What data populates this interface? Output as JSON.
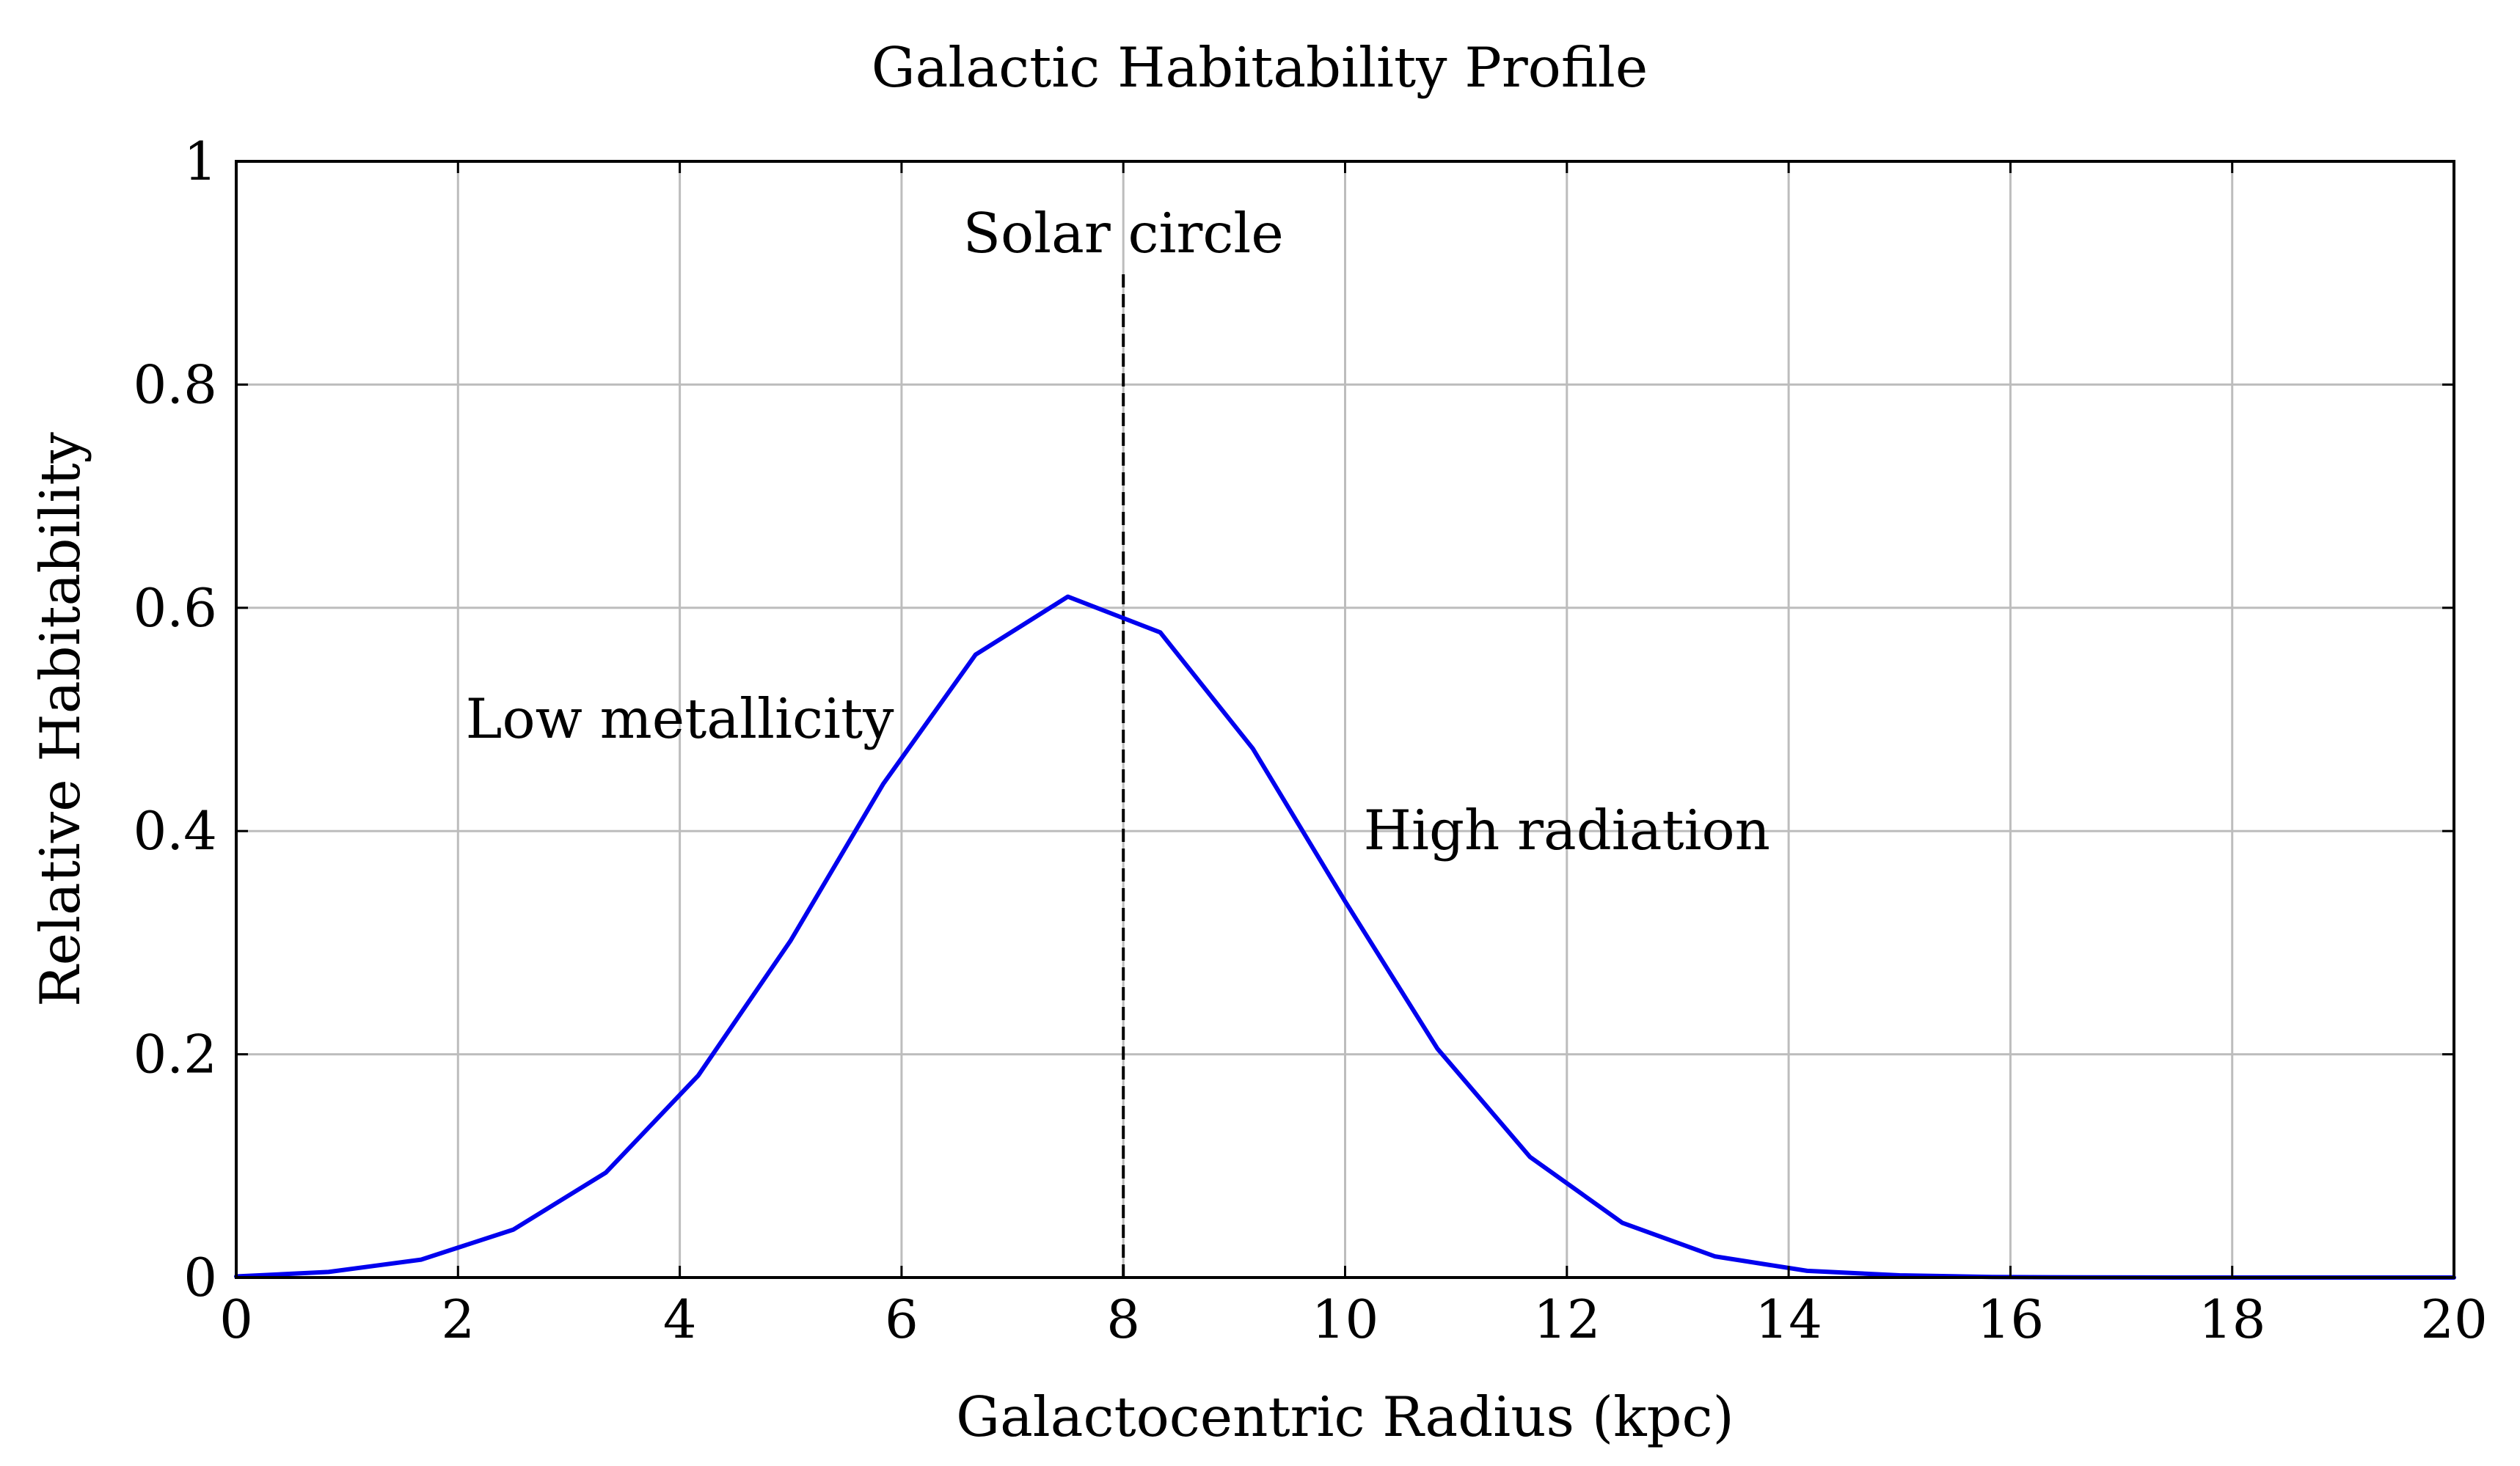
{
  "chart_data": {
    "type": "line",
    "title": "Galactic Habitability Profile",
    "xlabel": "Galactocentric Radius (kpc)",
    "ylabel": "Relative Habitability",
    "xlim": [
      0,
      20
    ],
    "ylim": [
      0,
      1
    ],
    "xticks": [
      0,
      2,
      4,
      6,
      8,
      10,
      12,
      14,
      16,
      18,
      20
    ],
    "yticks": [
      0,
      0.2,
      0.4,
      0.6,
      0.8,
      1
    ],
    "ytick_labels": [
      "0",
      "0.2",
      "0.4",
      "0.6",
      "0.8",
      "1"
    ],
    "grid": true,
    "series": [
      {
        "name": "Relative Habitability",
        "color": "#0000ee",
        "x": [
          0,
          0.833,
          1.667,
          2.5,
          3.333,
          4.167,
          5.0,
          5.833,
          6.667,
          7.5,
          8.333,
          9.167,
          10.0,
          10.833,
          11.667,
          12.5,
          13.333,
          14.167,
          15.0,
          15.833,
          16.667,
          17.5,
          18.333,
          19.167,
          20.0
        ],
        "y": [
          0.001,
          0.005,
          0.016,
          0.043,
          0.094,
          0.181,
          0.302,
          0.442,
          0.558,
          0.61,
          0.578,
          0.474,
          0.337,
          0.205,
          0.108,
          0.049,
          0.019,
          0.006,
          0.002,
          0.0005,
          0.0001,
          0.0,
          0.0,
          0.0,
          0.0
        ]
      }
    ],
    "reference_lines": [
      {
        "name": "Solar circle",
        "x": 8,
        "y_range": [
          0,
          0.9
        ],
        "color": "#000000",
        "style": "dashed"
      }
    ],
    "annotations": [
      {
        "name": "solar-circle-label",
        "text": "Solar circle",
        "x": 8,
        "y": 0.935
      },
      {
        "name": "low-metallicity-label",
        "text": "Low metallicity",
        "x": 4,
        "y": 0.5
      },
      {
        "name": "high-radiation-label",
        "text": "High radiation",
        "x": 12,
        "y": 0.4
      }
    ]
  }
}
